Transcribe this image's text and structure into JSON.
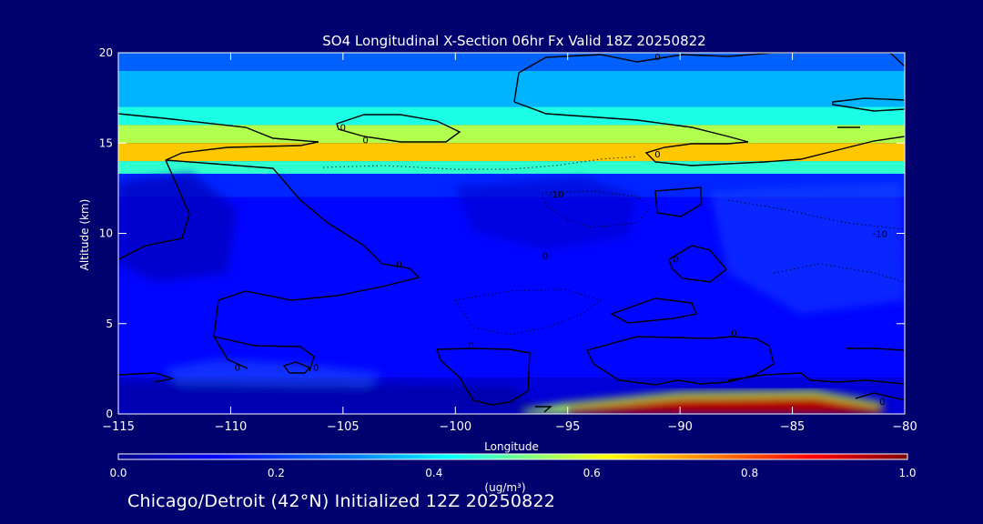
{
  "title": "SO4 Longitudinal X-Section 06hr  Fx Valid 18Z 20250822",
  "footer": "Chicago/Detroit (42°N) Initialized 12Z 20250822",
  "colors": {
    "background": "#00006e",
    "colormap": [
      "#00008f",
      "#0000ff",
      "#0080ff",
      "#00ffff",
      "#80ff80",
      "#ffff00",
      "#ff8000",
      "#ff0000",
      "#800000"
    ]
  },
  "chart_data": {
    "type": "heatmap",
    "title": "SO4 Longitudinal X-Section 06hr  Fx Valid 18Z 20250822",
    "xlabel": "Longitude",
    "ylabel": "Altitude (km)",
    "xlim": [
      -115,
      -80
    ],
    "ylim": [
      0,
      20
    ],
    "x_ticks": [
      -115,
      -110,
      -105,
      -100,
      -95,
      -90,
      -85,
      -80
    ],
    "x_tick_labels": [
      "−115",
      "−110",
      "−105",
      "−100",
      "−95",
      "−90",
      "−85",
      "−80"
    ],
    "y_ticks": [
      0,
      5,
      10,
      15,
      20
    ],
    "y_tick_labels": [
      "0",
      "5",
      "10",
      "15",
      "20"
    ],
    "colorbar": {
      "label": "(ug/m³)",
      "range": [
        0.0,
        1.0
      ],
      "ticks": [
        0.0,
        0.2,
        0.4,
        0.6,
        0.8,
        1.0
      ],
      "tick_labels": [
        "0.0",
        "0.2",
        "0.4",
        "0.6",
        "0.8",
        "1.0"
      ]
    },
    "field_bands": [
      {
        "alt": [
          19.0,
          20.0
        ],
        "value": 0.22
      },
      {
        "alt": [
          17.0,
          19.0
        ],
        "value": 0.3
      },
      {
        "alt": [
          16.0,
          17.0
        ],
        "value": 0.4
      },
      {
        "alt": [
          15.0,
          16.0
        ],
        "value": 0.55
      },
      {
        "alt": [
          14.0,
          15.0
        ],
        "value": 0.68
      },
      {
        "alt": [
          13.3,
          14.0
        ],
        "value": 0.42
      },
      {
        "alt": [
          12.0,
          13.3
        ],
        "value": 0.16
      },
      {
        "alt": [
          2.0,
          12.0
        ],
        "value": 0.13
      },
      {
        "alt": [
          0.0,
          2.0
        ],
        "value": 0.08
      }
    ],
    "surface_plume": [
      {
        "lon": -97,
        "alt": 0.2,
        "value": 0.35
      },
      {
        "lon": -95,
        "alt": 0.6,
        "value": 0.75
      },
      {
        "lon": -90,
        "alt": 1.2,
        "value": 1.0
      },
      {
        "lon": -84,
        "alt": 1.3,
        "value": 1.0
      },
      {
        "lon": -81,
        "alt": 0.6,
        "value": 0.8
      }
    ],
    "contour_labels": [
      {
        "text": "0",
        "lon": -104,
        "alt": 15.0
      },
      {
        "text": "0",
        "lon": -105,
        "alt": 15.7
      },
      {
        "text": "0",
        "lon": -91,
        "alt": 19.6
      },
      {
        "text": "0",
        "lon": -91,
        "alt": 14.2
      },
      {
        "text": "0",
        "lon": -102.5,
        "alt": 8.1
      },
      {
        "text": "0",
        "lon": -96,
        "alt": 8.6
      },
      {
        "text": "0",
        "lon": -90.2,
        "alt": 8.4
      },
      {
        "text": "0",
        "lon": -109.7,
        "alt": 2.4
      },
      {
        "text": "0",
        "lon": -106.2,
        "alt": 2.4
      },
      {
        "text": "0",
        "lon": -99.3,
        "alt": 3.6
      },
      {
        "text": "0",
        "lon": -87.6,
        "alt": 4.3
      },
      {
        "text": "0",
        "lon": -81,
        "alt": 0.5
      },
      {
        "text": "-10",
        "lon": -95.5,
        "alt": 12.0
      },
      {
        "text": "-10",
        "lon": -81.1,
        "alt": 9.8
      }
    ]
  }
}
